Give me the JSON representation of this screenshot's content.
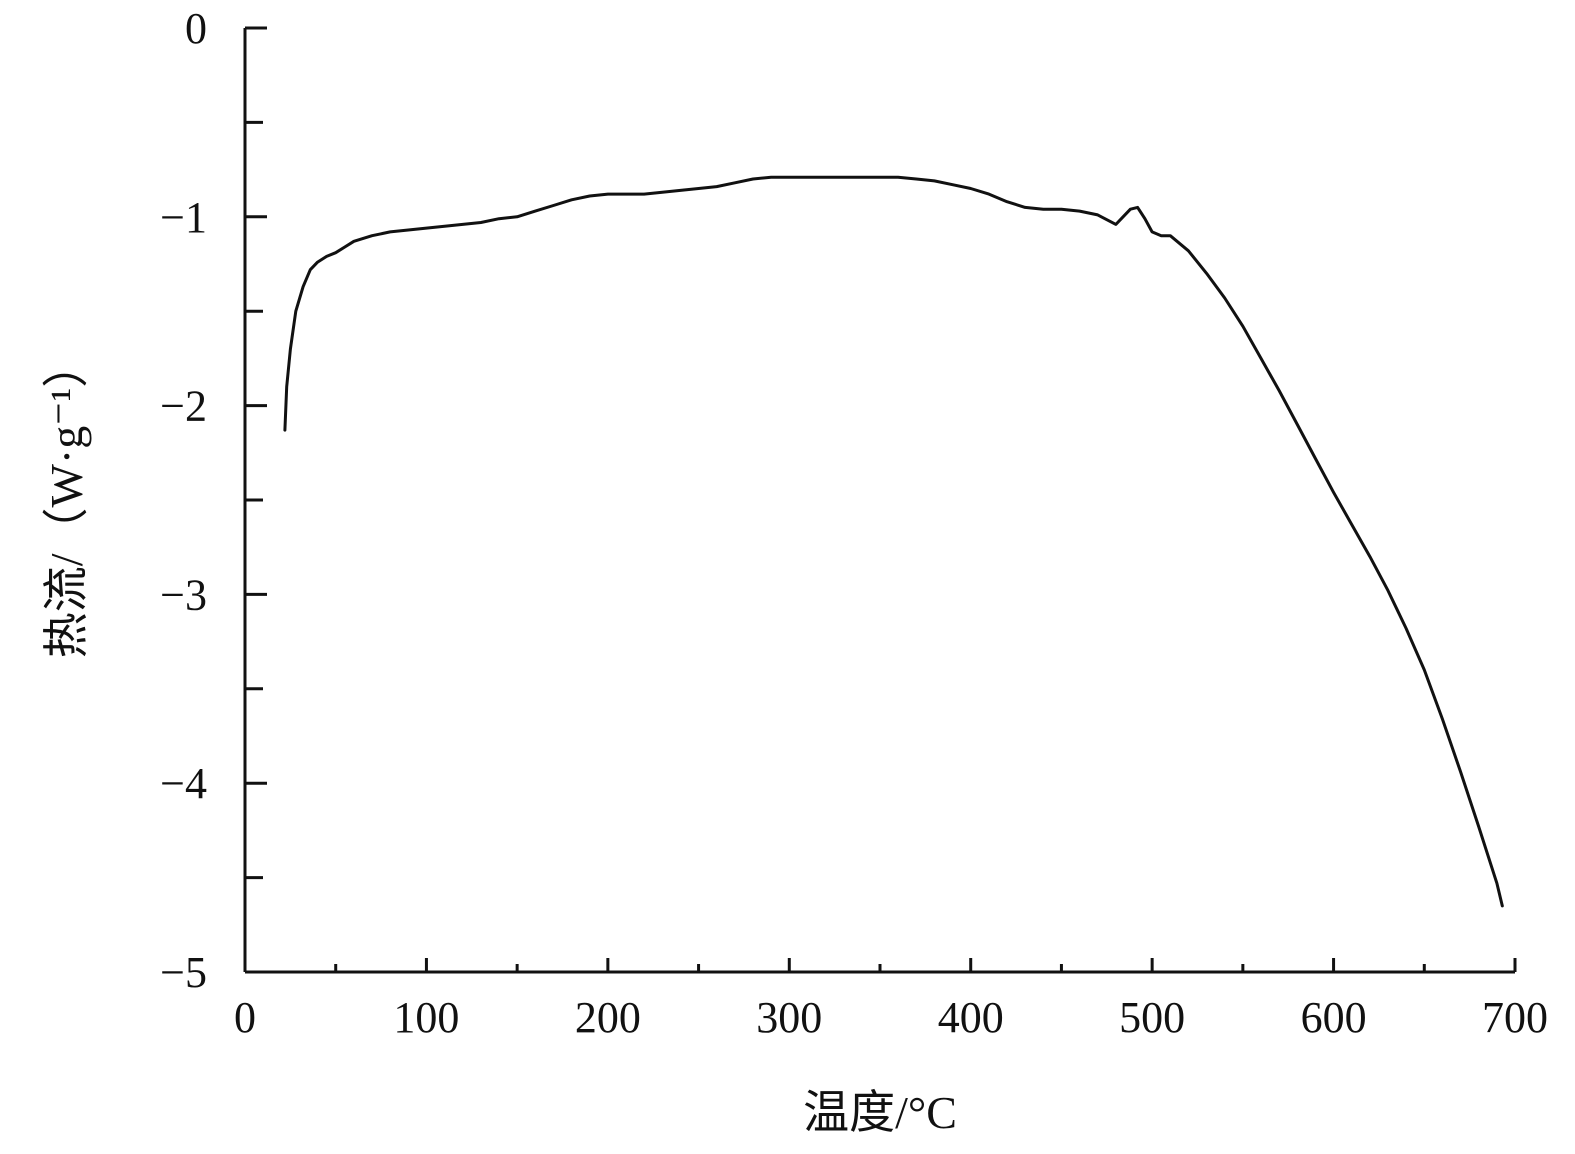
{
  "chart_data": {
    "type": "line",
    "xlabel": "温度/°C",
    "ylabel": "热流/（W·g⁻¹）",
    "xlim": [
      0,
      700
    ],
    "ylim": [
      -5,
      0
    ],
    "x_ticks": [
      0,
      100,
      200,
      300,
      400,
      500,
      600,
      700
    ],
    "y_ticks": [
      0,
      -1,
      -2,
      -3,
      -4,
      -5
    ],
    "x_tick_labels": [
      "0",
      "100",
      "200",
      "300",
      "400",
      "500",
      "600",
      "700"
    ],
    "y_tick_labels": [
      "0",
      "−1",
      "−2",
      "−3",
      "−4",
      "−5"
    ],
    "x_minor_step": 50,
    "y_minor_step": 0.5,
    "grid": false,
    "series": [
      {
        "color": "#111111",
        "x": [
          22,
          23,
          25,
          28,
          32,
          36,
          40,
          45,
          50,
          55,
          60,
          70,
          80,
          90,
          100,
          110,
          120,
          130,
          140,
          150,
          160,
          170,
          180,
          190,
          200,
          210,
          220,
          230,
          240,
          250,
          260,
          270,
          280,
          290,
          300,
          320,
          340,
          360,
          370,
          380,
          390,
          400,
          410,
          420,
          430,
          440,
          450,
          460,
          470,
          480,
          484,
          488,
          492,
          496,
          500,
          505,
          510,
          520,
          530,
          540,
          550,
          560,
          570,
          580,
          590,
          600,
          610,
          620,
          630,
          640,
          650,
          660,
          670,
          680,
          690,
          693
        ],
        "y": [
          -2.13,
          -1.9,
          -1.7,
          -1.5,
          -1.37,
          -1.28,
          -1.24,
          -1.21,
          -1.19,
          -1.16,
          -1.13,
          -1.1,
          -1.08,
          -1.07,
          -1.06,
          -1.05,
          -1.04,
          -1.03,
          -1.01,
          -1.0,
          -0.97,
          -0.94,
          -0.91,
          -0.89,
          -0.88,
          -0.88,
          -0.88,
          -0.87,
          -0.86,
          -0.85,
          -0.84,
          -0.82,
          -0.8,
          -0.79,
          -0.79,
          -0.79,
          -0.79,
          -0.79,
          -0.8,
          -0.81,
          -0.83,
          -0.85,
          -0.88,
          -0.92,
          -0.95,
          -0.96,
          -0.96,
          -0.97,
          -0.99,
          -1.04,
          -1.0,
          -0.96,
          -0.95,
          -1.01,
          -1.08,
          -1.1,
          -1.1,
          -1.18,
          -1.3,
          -1.43,
          -1.58,
          -1.75,
          -1.92,
          -2.1,
          -2.28,
          -2.46,
          -2.63,
          -2.8,
          -2.98,
          -3.18,
          -3.4,
          -3.66,
          -3.94,
          -4.23,
          -4.53,
          -4.65
        ]
      }
    ]
  }
}
